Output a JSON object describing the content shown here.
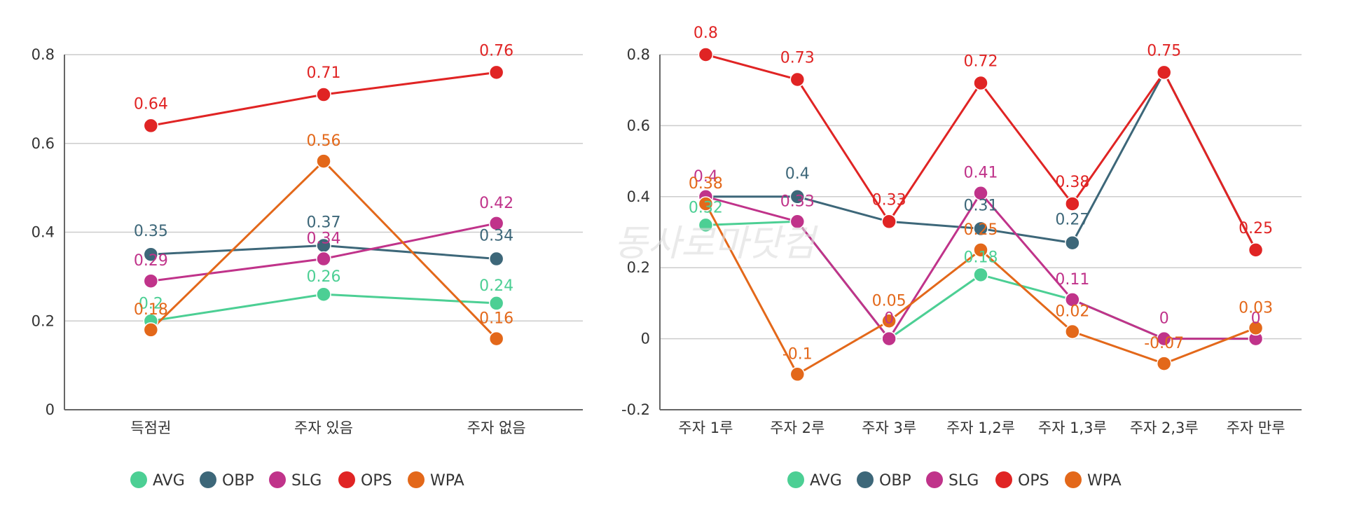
{
  "watermark": "동사로마닷컴",
  "colors": {
    "AVG": "#4ccf94",
    "OBP": "#3d6779",
    "SLG": "#c0338a",
    "OPS": "#e02424",
    "WPA": "#e3681a"
  },
  "chart_data": [
    {
      "type": "line",
      "categories": [
        "득점권",
        "주자 있음",
        "주자 없음"
      ],
      "ylim": [
        0,
        0.8
      ],
      "yticks": [
        "0",
        "0.2",
        "0.4",
        "0.6",
        "0.8"
      ],
      "legend_position": "bottom",
      "grid": true,
      "series": [
        {
          "name": "AVG",
          "values": [
            0.2,
            0.26,
            0.24
          ],
          "labels": [
            "0.2",
            "0.26",
            "0.24"
          ]
        },
        {
          "name": "OBP",
          "values": [
            0.35,
            0.37,
            0.34
          ],
          "labels": [
            "0.35",
            "0.37",
            "0.34"
          ]
        },
        {
          "name": "SLG",
          "values": [
            0.29,
            0.34,
            0.42
          ],
          "labels": [
            "0.29",
            "0.34",
            "0.42"
          ]
        },
        {
          "name": "OPS",
          "values": [
            0.64,
            0.71,
            0.76
          ],
          "labels": [
            "0.64",
            "0.71",
            "0.76"
          ]
        },
        {
          "name": "WPA",
          "values": [
            0.18,
            0.56,
            0.16
          ],
          "labels": [
            "0.18",
            "0.56",
            "0.16"
          ]
        }
      ]
    },
    {
      "type": "line",
      "categories": [
        "주자 1루",
        "주자 2루",
        "주자 3루",
        "주자 1,2루",
        "주자 1,3루",
        "주자 2,3루",
        "주자 만루"
      ],
      "ylim": [
        -0.2,
        0.8
      ],
      "yticks": [
        "-0.2",
        "0",
        "0.2",
        "0.4",
        "0.6",
        "0.8"
      ],
      "legend_position": "bottom",
      "grid": true,
      "series": [
        {
          "name": "AVG",
          "values": [
            0.32,
            0.33,
            0,
            0.18,
            0.11,
            0,
            0
          ],
          "labels": [
            "0.32",
            "",
            "",
            "0.18",
            "",
            "",
            ""
          ]
        },
        {
          "name": "OBP",
          "values": [
            0.4,
            0.4,
            0.33,
            0.31,
            0.27,
            0.75,
            0.25
          ],
          "labels": [
            "",
            "0.4",
            "",
            "0.31",
            "0.27",
            "",
            ""
          ]
        },
        {
          "name": "SLG",
          "values": [
            0.4,
            0.33,
            0,
            0.41,
            0.11,
            0,
            0
          ],
          "labels": [
            "0.4",
            "0.33",
            "0",
            "0.41",
            "0.11",
            "0",
            "0"
          ]
        },
        {
          "name": "OPS",
          "values": [
            0.8,
            0.73,
            0.33,
            0.72,
            0.38,
            0.75,
            0.25
          ],
          "labels": [
            "0.8",
            "0.73",
            "0.33",
            "0.72",
            "0.38",
            "0.75",
            "0.25"
          ]
        },
        {
          "name": "WPA",
          "values": [
            0.38,
            -0.1,
            0.05,
            0.25,
            0.02,
            -0.07,
            0.03
          ],
          "labels": [
            "0.38",
            "-0.1",
            "0.05",
            "0.25",
            "0.02",
            "-0.07",
            "0.03"
          ]
        }
      ]
    }
  ]
}
